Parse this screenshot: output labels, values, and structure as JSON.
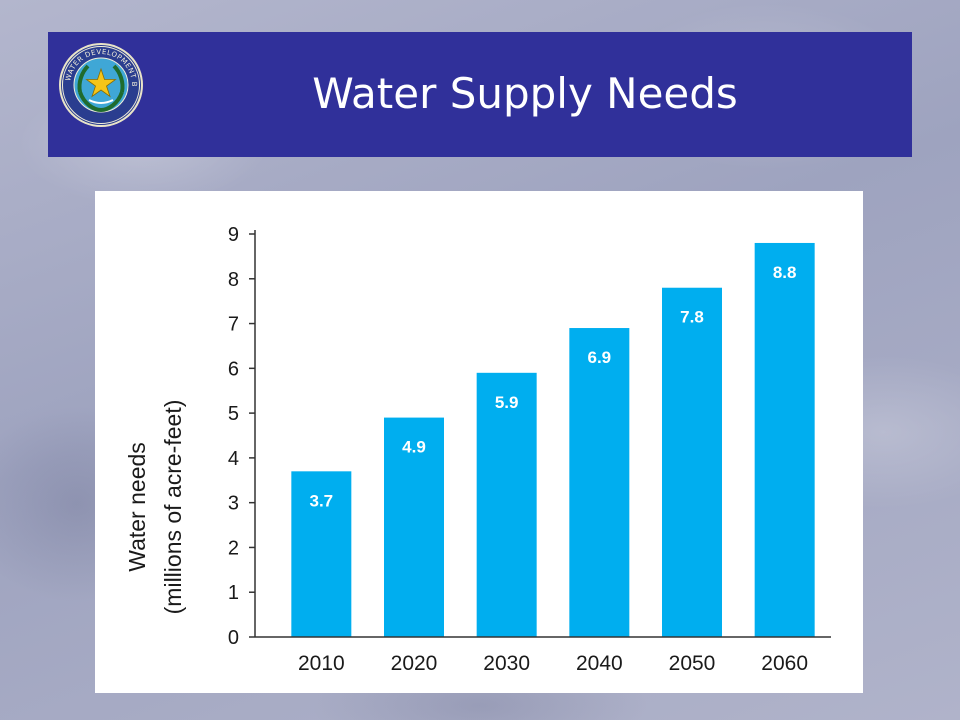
{
  "slide": {
    "title": "Water Supply Needs",
    "logo": {
      "icon": "texas-water-development-board-seal",
      "text": "TEXAS WATER DEVELOPMENT BOARD"
    }
  },
  "colors": {
    "title_bar": "#30309a",
    "bar": "#00aeef",
    "panel": "#ffffff"
  },
  "chart_data": {
    "type": "bar",
    "title": "",
    "categories": [
      "2010",
      "2020",
      "2030",
      "2040",
      "2050",
      "2060"
    ],
    "values": [
      3.7,
      4.9,
      5.9,
      6.9,
      7.8,
      8.8
    ],
    "data_labels": [
      "3.7",
      "4.9",
      "5.9",
      "6.9",
      "7.8",
      "8.8"
    ],
    "ylabel_line1": "Water needs",
    "ylabel_line2": "(millions of acre-feet)",
    "xlabel": "",
    "ylim": [
      0,
      9
    ],
    "yticks": [
      "0",
      "1",
      "2",
      "3",
      "4",
      "5",
      "6",
      "7",
      "8",
      "9"
    ],
    "grid": false,
    "legend": "none"
  }
}
